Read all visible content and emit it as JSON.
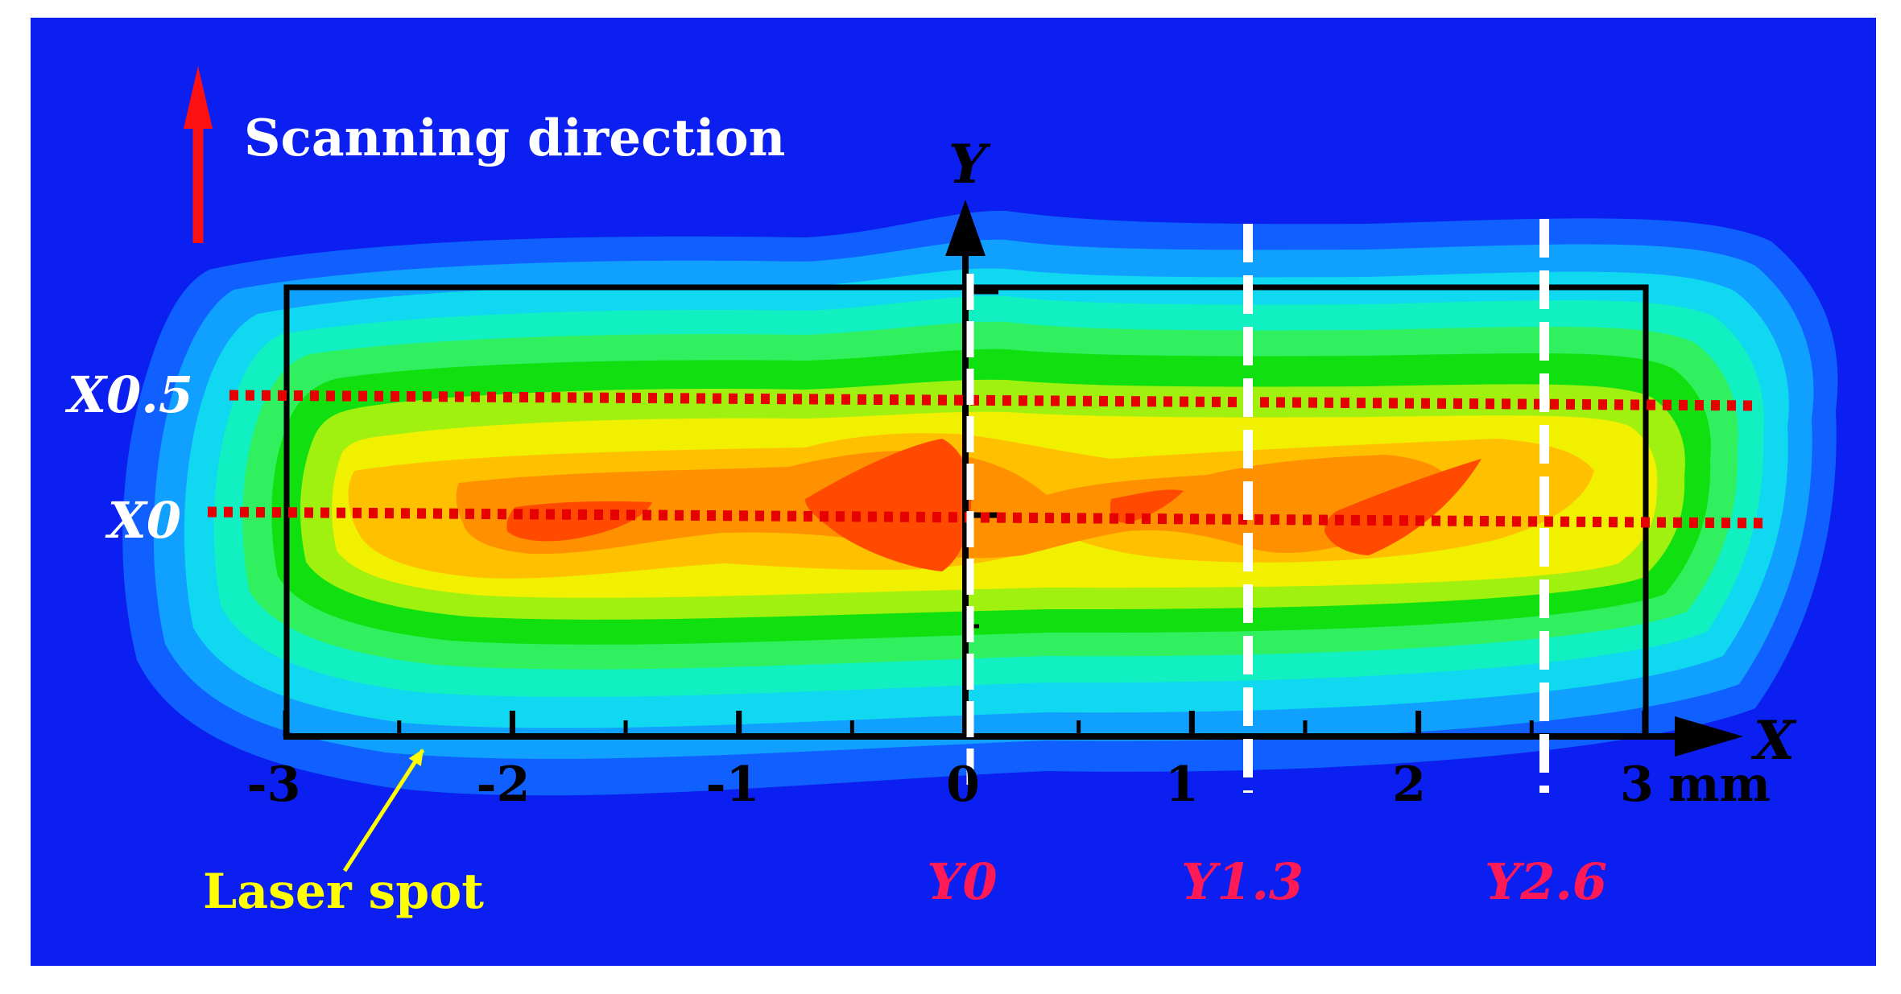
{
  "labels": {
    "scan_direction": "Scanning direction",
    "laser_spot": "Laser spot",
    "x_axis_label": "X",
    "y_axis_label": "Y",
    "x_unit": "mm"
  },
  "x_ticks": [
    "-3",
    "-2",
    "-1",
    "0",
    "1",
    "2",
    "3"
  ],
  "horizontal_lines": [
    {
      "label": "X0.5",
      "value": 0.5
    },
    {
      "label": "X0",
      "value": 0
    }
  ],
  "vertical_lines": [
    {
      "label": "Y0",
      "value": 0
    },
    {
      "label": "Y1.3",
      "value": 1.3
    },
    {
      "label": "Y2.6",
      "value": 2.6
    }
  ],
  "colors": {
    "background": "#0a1ff0",
    "white_text": "#ffffff",
    "red_text": "#ff1a55",
    "arrow_red": "#ff1010",
    "dotted_red": "#e60000",
    "laser_yellow": "#ffff00",
    "axis": "#000000",
    "contours": [
      "#1060ff",
      "#10a0ff",
      "#10d8f0",
      "#10f0c0",
      "#30f060",
      "#10e010",
      "#a0f010",
      "#f0f000",
      "#ffc000",
      "#ff9000",
      "#ff4a00"
    ]
  }
}
